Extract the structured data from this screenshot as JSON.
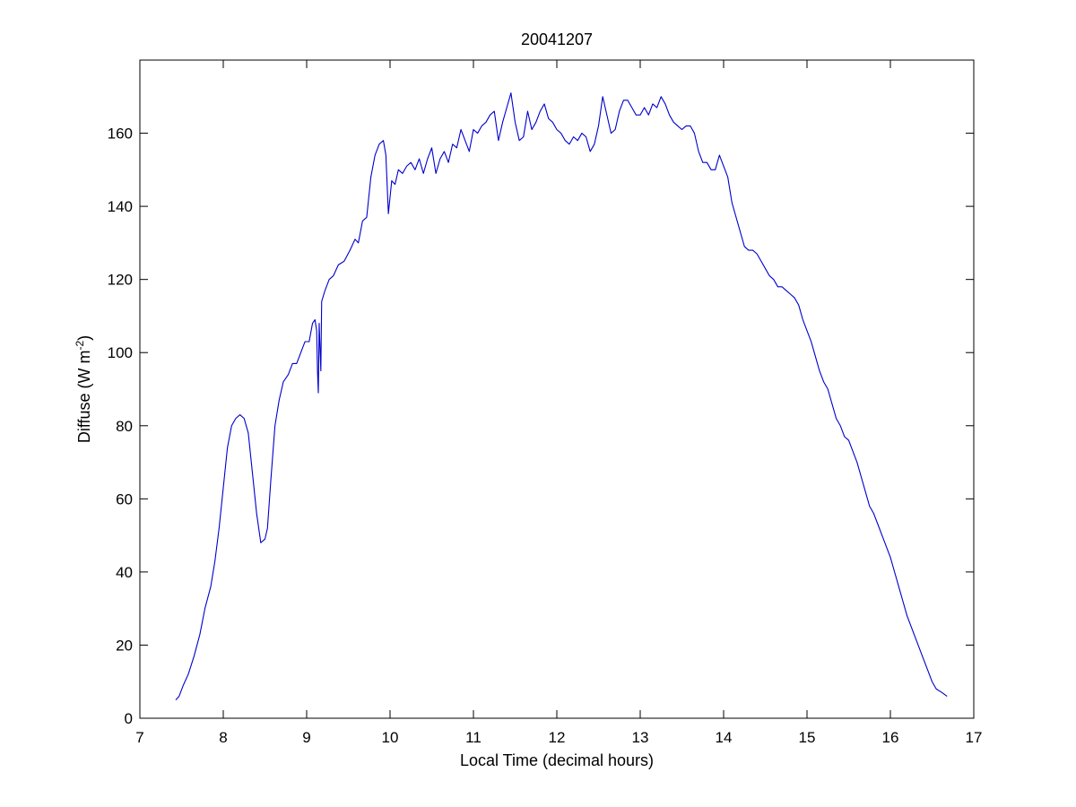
{
  "chart_data": {
    "type": "line",
    "title": "20041207",
    "xlabel": "Local Time (decimal hours)",
    "ylabel_main": "Diffuse (W m",
    "ylabel_sup": "-2",
    "ylabel_end": ")",
    "xlim": [
      7,
      17
    ],
    "ylim": [
      0,
      180
    ],
    "xticks": [
      7,
      8,
      9,
      10,
      11,
      12,
      13,
      14,
      15,
      16,
      17
    ],
    "yticks": [
      0,
      20,
      40,
      60,
      80,
      100,
      120,
      140,
      160
    ],
    "grid": false,
    "legend": "none",
    "series": [
      {
        "color": "#0000cc",
        "points": [
          [
            7.43,
            5
          ],
          [
            7.47,
            6
          ],
          [
            7.52,
            9
          ],
          [
            7.58,
            12
          ],
          [
            7.65,
            17
          ],
          [
            7.72,
            23
          ],
          [
            7.78,
            30
          ],
          [
            7.85,
            36
          ],
          [
            7.9,
            43
          ],
          [
            7.95,
            52
          ],
          [
            8.0,
            63
          ],
          [
            8.05,
            74
          ],
          [
            8.1,
            80
          ],
          [
            8.15,
            82
          ],
          [
            8.2,
            83
          ],
          [
            8.25,
            82
          ],
          [
            8.3,
            78
          ],
          [
            8.35,
            67
          ],
          [
            8.4,
            56
          ],
          [
            8.45,
            48
          ],
          [
            8.5,
            49
          ],
          [
            8.53,
            52
          ],
          [
            8.57,
            65
          ],
          [
            8.62,
            80
          ],
          [
            8.67,
            87
          ],
          [
            8.72,
            92
          ],
          [
            8.78,
            94
          ],
          [
            8.83,
            97
          ],
          [
            8.88,
            97
          ],
          [
            8.93,
            100
          ],
          [
            8.98,
            103
          ],
          [
            9.03,
            103
          ],
          [
            9.07,
            108
          ],
          [
            9.1,
            109
          ],
          [
            9.12,
            106
          ],
          [
            9.13,
            95
          ],
          [
            9.14,
            89
          ],
          [
            9.15,
            108
          ],
          [
            9.17,
            95
          ],
          [
            9.18,
            114
          ],
          [
            9.22,
            117
          ],
          [
            9.27,
            120
          ],
          [
            9.32,
            121
          ],
          [
            9.38,
            124
          ],
          [
            9.45,
            125
          ],
          [
            9.52,
            128
          ],
          [
            9.58,
            131
          ],
          [
            9.62,
            130
          ],
          [
            9.67,
            136
          ],
          [
            9.72,
            137
          ],
          [
            9.77,
            148
          ],
          [
            9.82,
            154
          ],
          [
            9.87,
            157
          ],
          [
            9.92,
            158
          ],
          [
            9.95,
            154
          ],
          [
            9.98,
            138
          ],
          [
            10.02,
            147
          ],
          [
            10.06,
            146
          ],
          [
            10.1,
            150
          ],
          [
            10.15,
            149
          ],
          [
            10.2,
            151
          ],
          [
            10.25,
            152
          ],
          [
            10.3,
            150
          ],
          [
            10.35,
            153
          ],
          [
            10.4,
            149
          ],
          [
            10.45,
            153
          ],
          [
            10.5,
            156
          ],
          [
            10.55,
            149
          ],
          [
            10.6,
            153
          ],
          [
            10.65,
            155
          ],
          [
            10.7,
            152
          ],
          [
            10.75,
            157
          ],
          [
            10.8,
            156
          ],
          [
            10.85,
            161
          ],
          [
            10.9,
            158
          ],
          [
            10.95,
            155
          ],
          [
            11.0,
            161
          ],
          [
            11.05,
            160
          ],
          [
            11.1,
            162
          ],
          [
            11.15,
            163
          ],
          [
            11.2,
            165
          ],
          [
            11.25,
            166
          ],
          [
            11.3,
            158
          ],
          [
            11.35,
            163
          ],
          [
            11.4,
            167
          ],
          [
            11.45,
            171
          ],
          [
            11.5,
            163
          ],
          [
            11.55,
            158
          ],
          [
            11.6,
            159
          ],
          [
            11.65,
            166
          ],
          [
            11.7,
            161
          ],
          [
            11.75,
            163
          ],
          [
            11.8,
            166
          ],
          [
            11.85,
            168
          ],
          [
            11.9,
            164
          ],
          [
            11.95,
            163
          ],
          [
            12.0,
            161
          ],
          [
            12.05,
            160
          ],
          [
            12.1,
            158
          ],
          [
            12.15,
            157
          ],
          [
            12.2,
            159
          ],
          [
            12.25,
            158
          ],
          [
            12.3,
            160
          ],
          [
            12.35,
            159
          ],
          [
            12.4,
            155
          ],
          [
            12.45,
            157
          ],
          [
            12.5,
            162
          ],
          [
            12.55,
            170
          ],
          [
            12.6,
            165
          ],
          [
            12.65,
            160
          ],
          [
            12.7,
            161
          ],
          [
            12.75,
            166
          ],
          [
            12.8,
            169
          ],
          [
            12.85,
            169
          ],
          [
            12.9,
            167
          ],
          [
            12.95,
            165
          ],
          [
            13.0,
            165
          ],
          [
            13.05,
            167
          ],
          [
            13.1,
            165
          ],
          [
            13.15,
            168
          ],
          [
            13.2,
            167
          ],
          [
            13.25,
            170
          ],
          [
            13.3,
            168
          ],
          [
            13.35,
            165
          ],
          [
            13.4,
            163
          ],
          [
            13.45,
            162
          ],
          [
            13.5,
            161
          ],
          [
            13.55,
            162
          ],
          [
            13.6,
            162
          ],
          [
            13.65,
            160
          ],
          [
            13.7,
            155
          ],
          [
            13.75,
            152
          ],
          [
            13.8,
            152
          ],
          [
            13.85,
            150
          ],
          [
            13.9,
            150
          ],
          [
            13.95,
            154
          ],
          [
            14.0,
            151
          ],
          [
            14.05,
            148
          ],
          [
            14.1,
            141
          ],
          [
            14.15,
            137
          ],
          [
            14.2,
            133
          ],
          [
            14.25,
            129
          ],
          [
            14.3,
            128
          ],
          [
            14.35,
            128
          ],
          [
            14.4,
            127
          ],
          [
            14.45,
            125
          ],
          [
            14.5,
            123
          ],
          [
            14.55,
            121
          ],
          [
            14.6,
            120
          ],
          [
            14.65,
            118
          ],
          [
            14.7,
            118
          ],
          [
            14.75,
            117
          ],
          [
            14.8,
            116
          ],
          [
            14.85,
            115
          ],
          [
            14.9,
            113
          ],
          [
            14.95,
            109
          ],
          [
            15.0,
            106
          ],
          [
            15.05,
            103
          ],
          [
            15.1,
            99
          ],
          [
            15.15,
            95
          ],
          [
            15.2,
            92
          ],
          [
            15.25,
            90
          ],
          [
            15.3,
            86
          ],
          [
            15.35,
            82
          ],
          [
            15.4,
            80
          ],
          [
            15.45,
            77
          ],
          [
            15.5,
            76
          ],
          [
            15.55,
            73
          ],
          [
            15.6,
            70
          ],
          [
            15.65,
            66
          ],
          [
            15.7,
            62
          ],
          [
            15.75,
            58
          ],
          [
            15.8,
            56
          ],
          [
            15.85,
            53
          ],
          [
            15.9,
            50
          ],
          [
            15.95,
            47
          ],
          [
            16.0,
            44
          ],
          [
            16.05,
            40
          ],
          [
            16.1,
            36
          ],
          [
            16.15,
            32
          ],
          [
            16.2,
            28
          ],
          [
            16.25,
            25
          ],
          [
            16.3,
            22
          ],
          [
            16.35,
            19
          ],
          [
            16.4,
            16
          ],
          [
            16.45,
            13
          ],
          [
            16.5,
            10
          ],
          [
            16.55,
            8
          ],
          [
            16.62,
            7
          ],
          [
            16.68,
            6
          ]
        ]
      }
    ]
  }
}
